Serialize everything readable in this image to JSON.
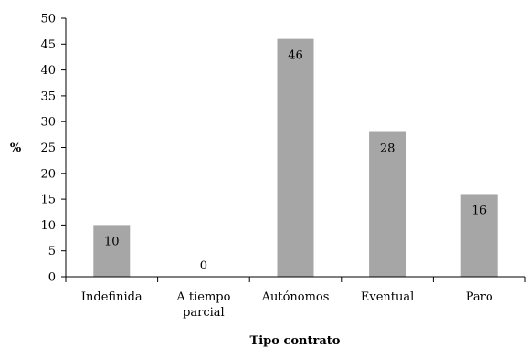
{
  "chart_data": {
    "type": "bar",
    "categories": [
      "Indefinida",
      "A tiempo parcial",
      "Autónomos",
      "Eventual",
      "Paro"
    ],
    "category_lines": [
      [
        "Indefinida"
      ],
      [
        "A tiempo",
        "parcial"
      ],
      [
        "Autónomos"
      ],
      [
        "Eventual"
      ],
      [
        "Paro"
      ]
    ],
    "values": [
      10,
      0,
      46,
      28,
      16
    ],
    "data_labels": [
      "10",
      "0",
      "46",
      "28",
      "16"
    ],
    "xlabel": "Tipo contrato",
    "ylabel": "%",
    "ylim": [
      0,
      50
    ],
    "yticks": [
      0,
      5,
      10,
      15,
      20,
      25,
      30,
      35,
      40,
      45,
      50
    ],
    "bar_color": "#a6a6a6",
    "grid": false,
    "legend": "none"
  }
}
